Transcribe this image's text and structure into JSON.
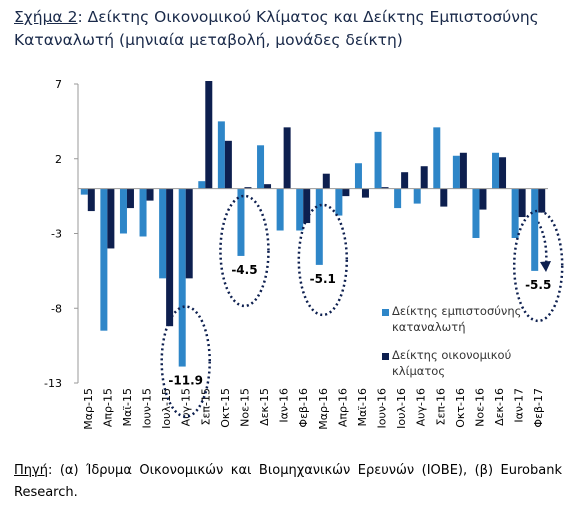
{
  "chart_data": {
    "type": "bar",
    "figure_label": "Σχήμα 2",
    "title": ": Δείκτης Οικονομικού Κλίματος και Δείκτης Εμπιστοσύνης Καταναλωτή (μηνιαία μεταβολή, μονάδες δείκτη)",
    "categories": [
      "Μαρ-15",
      "Απρ-15",
      "Μαϊ-15",
      "Ιουν-15",
      "Ιουλ-15",
      "Αυγ-15",
      "Σεπ-15",
      "Οκτ-15",
      "Νοε-15",
      "Δεκ-15",
      "Ιαν-16",
      "Φεβ-16",
      "Μαρ-16",
      "Απρ-16",
      "Μαϊ-16",
      "Ιουν-16",
      "Ιουλ-16",
      "Αυγ-16",
      "Σεπ-16",
      "Οκτ-16",
      "Νοε-16",
      "Δεκ-16",
      "Ιαν-17",
      "Φεβ-17"
    ],
    "series": [
      {
        "name": "Δείκτης εμπιστοσύνης καταναλωτή",
        "color": "#2e86c8",
        "values": [
          -0.4,
          -9.5,
          -3,
          -3.2,
          -6,
          -11.9,
          0.5,
          4.5,
          -4.5,
          2.9,
          -2.8,
          -2.8,
          -5.1,
          -1.8,
          1.7,
          3.8,
          -1.3,
          -1,
          4.1,
          2.2,
          -3.3,
          2.4,
          -3.3,
          -5.5
        ],
        "value_labels": [
          null,
          null,
          null,
          null,
          null,
          "-11.9",
          null,
          null,
          "-4.5",
          null,
          null,
          null,
          "-5.1",
          null,
          null,
          null,
          null,
          null,
          null,
          null,
          null,
          null,
          null,
          "-5.5"
        ]
      },
      {
        "name": "Δείκτης οικονομικού κλίματος",
        "color": "#0d1f4f",
        "values": [
          -1.5,
          -4,
          -1.3,
          -0.8,
          -9.2,
          -6,
          7.2,
          3.2,
          0.1,
          0.3,
          4.1,
          -2.3,
          1,
          -0.5,
          -0.6,
          0.1,
          1.1,
          1.5,
          -1.2,
          2.4,
          -1.4,
          2.1,
          -1.9,
          -1.6
        ]
      }
    ],
    "ylim": [
      -13,
      7
    ],
    "yticks": [
      7,
      2,
      -3,
      -8,
      -13
    ],
    "source_label": "Πηγή",
    "source": ": (α) Ίδρυμα Οικονομικών και Βιομηχανικών Ερευνών (ΙΟΒΕ), (β) Eurobank Research."
  }
}
